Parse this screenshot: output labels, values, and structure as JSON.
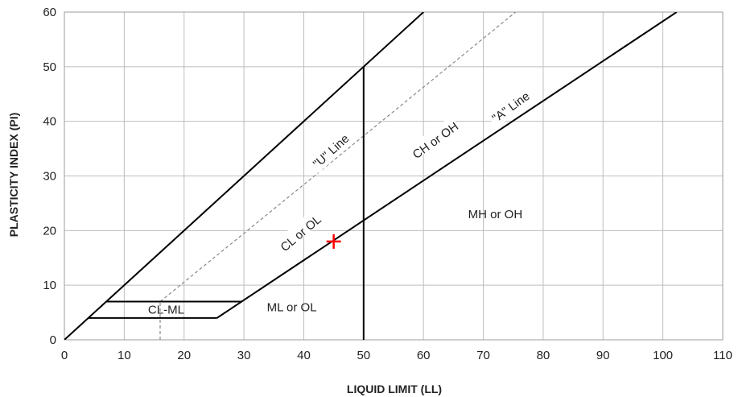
{
  "chart_data": {
    "type": "line",
    "title": "",
    "xlabel": "LIQUID LIMIT (LL)",
    "ylabel": "PLASTICITY INDEX (PI)",
    "xlim": [
      0,
      110
    ],
    "ylim": [
      0,
      60
    ],
    "x_ticks": [
      "0",
      "10",
      "20",
      "30",
      "40",
      "50",
      "60",
      "70",
      "80",
      "90",
      "100",
      "110"
    ],
    "y_ticks": [
      "0",
      "10",
      "20",
      "30",
      "40",
      "50",
      "60"
    ],
    "grid": true,
    "series": [
      {
        "name": "\"A\" Line",
        "style": "solid",
        "x": [
          25.5,
          102.3
        ],
        "y": [
          4,
          60
        ]
      },
      {
        "name": "\"U\" Line",
        "style": "dashed",
        "x": [
          16,
          75.4
        ],
        "y": [
          7,
          60
        ]
      },
      {
        "name": "",
        "style": "solid",
        "x": [
          0,
          60
        ],
        "y": [
          0,
          60
        ]
      },
      {
        "name": "",
        "style": "solid",
        "x": [
          50,
          50
        ],
        "y": [
          0,
          50
        ]
      },
      {
        "name": "",
        "style": "solid",
        "x": [
          7,
          29.6
        ],
        "y": [
          7,
          7
        ]
      },
      {
        "name": "",
        "style": "solid",
        "x": [
          4,
          25.5
        ],
        "y": [
          4,
          4
        ]
      },
      {
        "name": "",
        "style": "dashed",
        "x": [
          16,
          16
        ],
        "y": [
          0,
          7
        ]
      }
    ],
    "line_labels": [
      {
        "text": "\"A\" Line",
        "x": 75,
        "y": 42,
        "angle": -36
      },
      {
        "text": "\"U\" Line",
        "x": 45,
        "y": 34,
        "angle": -42
      }
    ],
    "regions": [
      {
        "text": "CL-ML",
        "x": 17,
        "y": 5.5
      },
      {
        "text": "ML or OL",
        "x": 38,
        "y": 6
      },
      {
        "text": "CL or OL",
        "x": 39.5,
        "y": 19.5,
        "angle": -40
      },
      {
        "text": "CH or OH",
        "x": 62,
        "y": 36.5,
        "angle": -36
      },
      {
        "text": "MH or OH",
        "x": 72,
        "y": 23
      }
    ],
    "marker": {
      "symbol": "+",
      "color": "#ff0000",
      "x": 45,
      "y": 18
    }
  }
}
